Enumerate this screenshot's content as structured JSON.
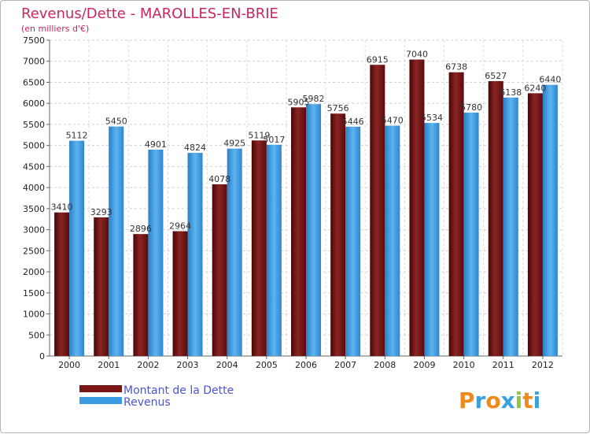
{
  "chart_data": {
    "type": "bar",
    "title": "Revenus/Dette - MAROLLES-EN-BRIE",
    "subtitle": "(en milliers d'€)",
    "categories": [
      "2000",
      "2001",
      "2002",
      "2003",
      "2004",
      "2005",
      "2006",
      "2007",
      "2008",
      "2009",
      "2010",
      "2011",
      "2012"
    ],
    "series": [
      {
        "name": "Montant de la Dette",
        "color": "#7a1515",
        "values": [
          3410,
          3293,
          2896,
          2964,
          4078,
          5119,
          5905,
          5756,
          6915,
          7040,
          6738,
          6527,
          6240
        ]
      },
      {
        "name": "Revenus",
        "color": "#3d9be3",
        "values": [
          5112,
          5450,
          4901,
          4824,
          4925,
          5017,
          5982,
          5446,
          5470,
          5534,
          5780,
          6138,
          6440
        ]
      }
    ],
    "ylim": [
      0,
      7500
    ],
    "yticks": [
      0,
      500,
      1000,
      1500,
      2000,
      2500,
      3000,
      3500,
      4000,
      4500,
      5000,
      5500,
      6000,
      6500,
      7000,
      7500
    ],
    "grid": true,
    "legend_position": "bottom-left"
  },
  "branding": {
    "logo_text": "Proxiti",
    "logo_letters": [
      "P",
      "r",
      "o",
      "x",
      "i",
      "t",
      "i"
    ],
    "logo_colors": [
      "#f08a1c",
      "#3aa0e0",
      "#f08a1c",
      "#3aa0e0",
      "#8dc63f",
      "#f08a1c",
      "#3aa0e0"
    ]
  }
}
